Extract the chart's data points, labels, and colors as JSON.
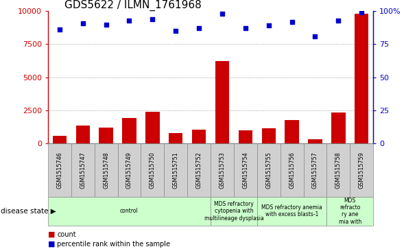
{
  "title": "GDS5622 / ILMN_1761968",
  "samples": [
    "GSM1515746",
    "GSM1515747",
    "GSM1515748",
    "GSM1515749",
    "GSM1515750",
    "GSM1515751",
    "GSM1515752",
    "GSM1515753",
    "GSM1515754",
    "GSM1515755",
    "GSM1515756",
    "GSM1515757",
    "GSM1515758",
    "GSM1515759"
  ],
  "counts": [
    550,
    1350,
    1200,
    1900,
    2400,
    750,
    1050,
    6200,
    950,
    1150,
    1750,
    300,
    2350,
    9800
  ],
  "percentile_ranks": [
    86,
    91,
    90,
    93,
    94,
    85,
    87,
    98,
    87,
    89,
    92,
    81,
    93,
    99
  ],
  "ylim_left": [
    0,
    10000
  ],
  "ylim_right": [
    0,
    100
  ],
  "yticks_left": [
    0,
    2500,
    5000,
    7500,
    10000
  ],
  "ytick_labels_left": [
    "0",
    "2500",
    "5000",
    "7500",
    "10000"
  ],
  "yticks_right": [
    0,
    25,
    50,
    75,
    100
  ],
  "ytick_labels_right": [
    "0",
    "25",
    "50",
    "75",
    "100%"
  ],
  "bar_color": "#cc0000",
  "dot_color": "#0000cc",
  "disease_groups": [
    {
      "label": "control",
      "start": 0,
      "end": 7,
      "color": "#ccffcc"
    },
    {
      "label": "MDS refractory\ncytopenia with\nmultilineage dysplasia",
      "start": 7,
      "end": 9,
      "color": "#ccffcc"
    },
    {
      "label": "MDS refractory anemia\nwith excess blasts-1",
      "start": 9,
      "end": 12,
      "color": "#ccffcc"
    },
    {
      "label": "MDS\nrefracto\nry ane\nmia with",
      "start": 12,
      "end": 14,
      "color": "#ccffcc"
    }
  ],
  "disease_state_label": "disease state",
  "legend_count_label": "count",
  "legend_pct_label": "percentile rank within the sample",
  "tick_bg_color": "#d0d0d0",
  "grid_color": "#888888",
  "title_fontsize": 11,
  "axis_fontsize": 8,
  "label_fontsize": 7,
  "bar_width": 0.6
}
